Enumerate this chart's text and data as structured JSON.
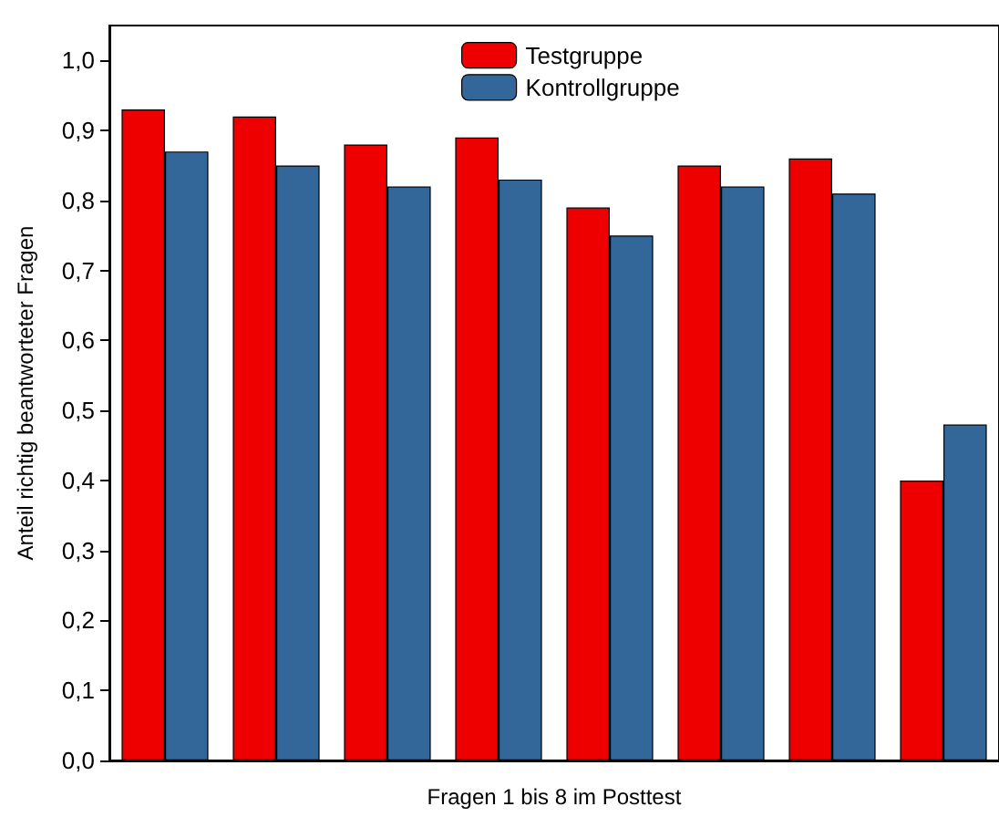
{
  "chart_data": {
    "type": "bar",
    "xlabel": "Fragen 1 bis 8 im Posttest",
    "ylabel": "Anteil richtig beantworteter Fragen",
    "categories": [
      null,
      null,
      null,
      null,
      null,
      null,
      null,
      null
    ],
    "series": [
      {
        "name": "Testgruppe",
        "color": "#ee0000",
        "values": [
          0.93,
          0.92,
          0.88,
          0.89,
          0.79,
          0.85,
          0.86,
          0.4
        ]
      },
      {
        "name": "Kontrollgruppe",
        "color": "#336699",
        "values": [
          0.87,
          0.85,
          0.82,
          0.83,
          0.75,
          0.82,
          0.81,
          0.48
        ]
      }
    ],
    "ylim": [
      0,
      1.05
    ],
    "yticks": [
      {
        "value": 0,
        "label": "0,0"
      },
      {
        "value": 0.1,
        "label": "0,1"
      },
      {
        "value": 0.2,
        "label": "0,2"
      },
      {
        "value": 0.3,
        "label": "0,3"
      },
      {
        "value": 0.4,
        "label": "0,4"
      },
      {
        "value": 0.5,
        "label": "0,5"
      },
      {
        "value": 0.6,
        "label": "0,6"
      },
      {
        "value": 0.7,
        "label": "0,7"
      },
      {
        "value": 0.8,
        "label": "0,8"
      },
      {
        "value": 0.9,
        "label": "0,9"
      },
      {
        "value": 1,
        "label": "1,0"
      }
    ],
    "grid": false,
    "legend": "top"
  }
}
